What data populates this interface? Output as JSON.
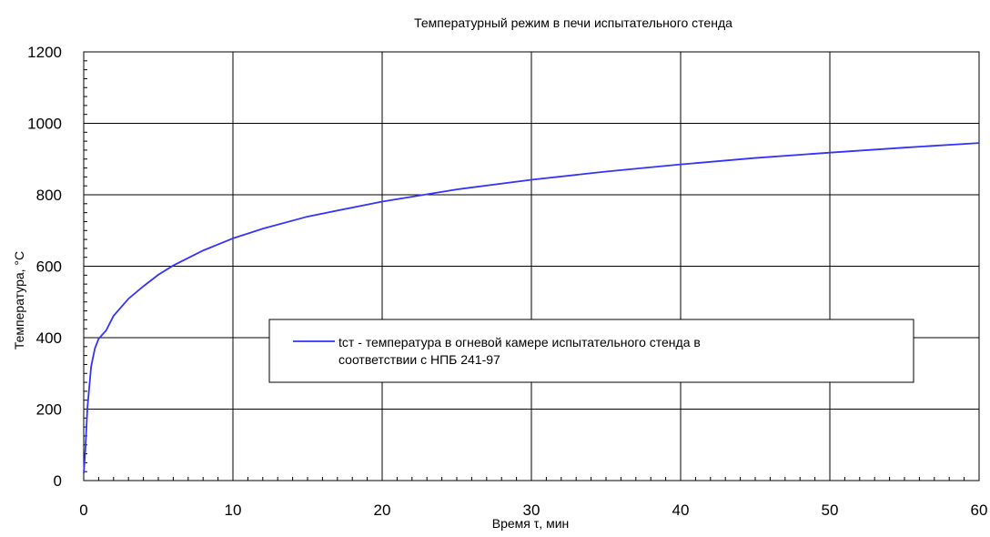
{
  "chart_data": {
    "type": "line",
    "title": "Температурный режим в печи испытательного стенда",
    "xlabel": "Время τ, мин",
    "ylabel": "Температура, °С",
    "xlim": [
      0,
      60
    ],
    "ylim": [
      0,
      1200
    ],
    "x_ticks": [
      0,
      10,
      20,
      30,
      40,
      50,
      60
    ],
    "y_ticks": [
      0,
      200,
      400,
      600,
      800,
      1000,
      1200
    ],
    "grid": true,
    "legend": {
      "placement": "center",
      "line1": "tст - температура в огневой камере испытательного стенда  в",
      "line2": "соответствии с НПБ 241-97"
    },
    "series": [
      {
        "name": "tст - температура в огневой камере испытательного стенда  в соответствии с НПБ 241-97",
        "color": "#3333ff",
        "x": [
          0,
          0.1,
          0.25,
          0.5,
          0.75,
          1,
          1.5,
          2,
          3,
          4,
          5,
          6,
          8,
          10,
          12,
          15,
          20,
          25,
          30,
          35,
          40,
          45,
          50,
          55,
          60
        ],
        "y": [
          20,
          80,
          205,
          320,
          370,
          397,
          420,
          461,
          509,
          544,
          576,
          602,
          644,
          678,
          705,
          739,
          781,
          815,
          842,
          865,
          885,
          903,
          918,
          932,
          945
        ]
      }
    ]
  }
}
